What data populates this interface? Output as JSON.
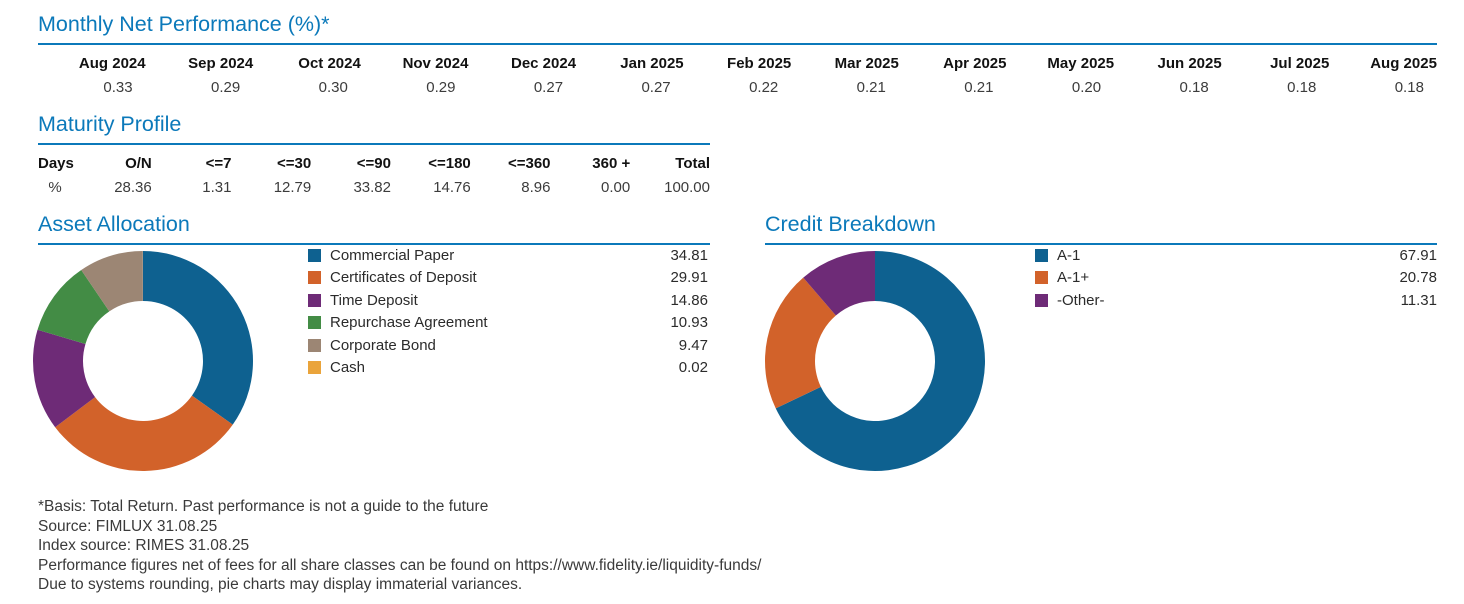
{
  "page": {
    "background": "#FFFFFF",
    "accent_color": "#0B79BA",
    "header_text_color": "#121212",
    "value_text_color": "#3C3C3C"
  },
  "monthly_performance": {
    "title": "Monthly Net Performance (%)*",
    "columns": [
      {
        "label": "Aug 2024",
        "value": "0.33"
      },
      {
        "label": "Sep 2024",
        "value": "0.29"
      },
      {
        "label": "Oct 2024",
        "value": "0.30"
      },
      {
        "label": "Nov 2024",
        "value": "0.29"
      },
      {
        "label": "Dec 2024",
        "value": "0.27"
      },
      {
        "label": "Jan 2025",
        "value": "0.27"
      },
      {
        "label": "Feb 2025",
        "value": "0.22"
      },
      {
        "label": "Mar 2025",
        "value": "0.21"
      },
      {
        "label": "Apr 2025",
        "value": "0.21"
      },
      {
        "label": "May 2025",
        "value": "0.20"
      },
      {
        "label": "Jun 2025",
        "value": "0.18"
      },
      {
        "label": "Jul 2025",
        "value": "0.18"
      },
      {
        "label": "Aug 2025",
        "value": "0.18"
      }
    ]
  },
  "maturity_profile": {
    "title": "Maturity Profile",
    "columns": [
      {
        "label": "Days",
        "value": "%"
      },
      {
        "label": "O/N",
        "value": "28.36"
      },
      {
        "label": "<=7",
        "value": "1.31"
      },
      {
        "label": "<=30",
        "value": "12.79"
      },
      {
        "label": "<=90",
        "value": "33.82"
      },
      {
        "label": "<=180",
        "value": "14.76"
      },
      {
        "label": "<=360",
        "value": "8.96"
      },
      {
        "label": "360 +",
        "value": "0.00"
      },
      {
        "label": "Total",
        "value": "100.00"
      }
    ]
  },
  "chart_data": [
    {
      "type": "pie",
      "subtype": "donut",
      "title": "Asset Allocation",
      "legend_position": "right",
      "start_angle": "12 o'clock",
      "direction": "clockwise",
      "slices": [
        {
          "label": "Commercial Paper",
          "value": "34.81",
          "color": "#0E6190"
        },
        {
          "label": "Certificates of Deposit",
          "value": "29.91",
          "color": "#D2622A"
        },
        {
          "label": "Time Deposit",
          "value": "14.86",
          "color": "#6E2B77"
        },
        {
          "label": "Repurchase Agreement",
          "value": "10.93",
          "color": "#438C45"
        },
        {
          "label": "Corporate Bond",
          "value": "9.47",
          "color": "#9C8674"
        },
        {
          "label": "Cash",
          "value": "0.02",
          "color": "#EAA43B"
        }
      ]
    },
    {
      "type": "pie",
      "subtype": "donut",
      "title": "Credit Breakdown",
      "legend_position": "right",
      "start_angle": "12 o'clock",
      "direction": "clockwise",
      "slices": [
        {
          "label": "A-1",
          "value": "67.91",
          "color": "#0E6190"
        },
        {
          "label": "A-1+",
          "value": "20.78",
          "color": "#D2622A"
        },
        {
          "label": "-Other-",
          "value": "11.31",
          "color": "#6E2B77"
        }
      ]
    }
  ],
  "footnotes": [
    {
      "text": "*Basis: Total Return. Past performance is not a guide to the future"
    },
    {
      "text": "Source: FIMLUX 31.08.25"
    },
    {
      "text": "Index source: RIMES 31.08.25"
    },
    {
      "text": "Performance figures net of fees for all share classes can be found on https://www.fidelity.ie/liquidity-funds/"
    },
    {
      "text": "Due to systems rounding, pie charts may display immaterial variances."
    }
  ]
}
